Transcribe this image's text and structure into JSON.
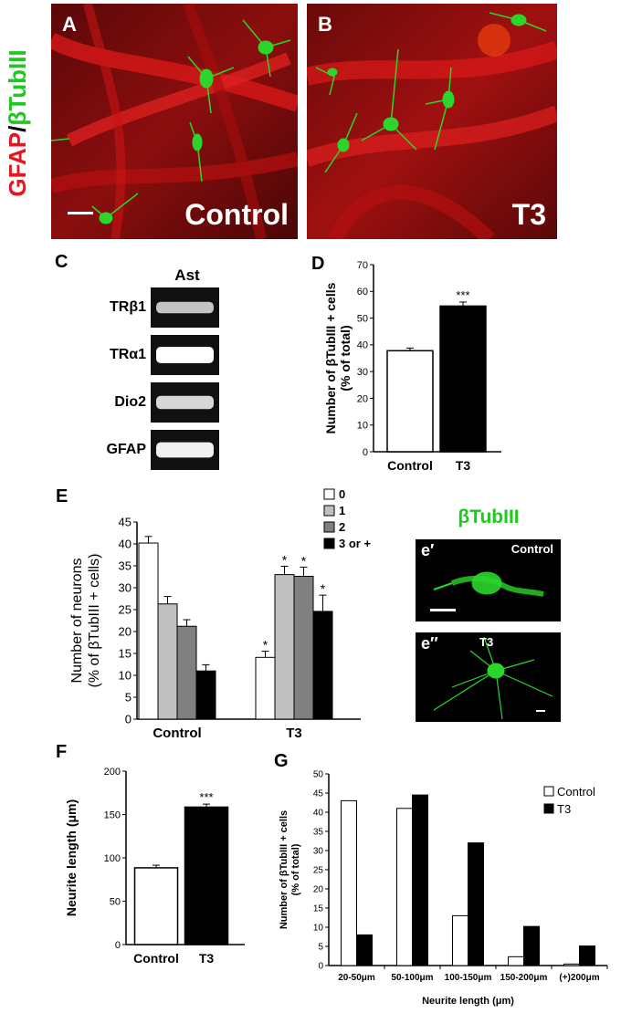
{
  "side_label": {
    "gfap": "GFAP",
    "slash": "/",
    "tub": "βTubIII"
  },
  "panels": {
    "A": {
      "letter": "A",
      "condition": "Control"
    },
    "B": {
      "letter": "B",
      "condition": "T3"
    },
    "C": {
      "letter": "C",
      "header": "Ast",
      "bands": [
        "TRβ1",
        "TRα1",
        "Dio2",
        "GFAP"
      ],
      "band_intensity": [
        0.55,
        1.0,
        0.7,
        0.9
      ]
    },
    "e_insets": {
      "title": "βTubIII",
      "top": {
        "letter": "e′",
        "condition": "Control"
      },
      "bottom": {
        "letter": "e′′",
        "condition": "T3"
      }
    }
  },
  "colors": {
    "gfap": "#e8141e",
    "tub": "#1fc81f",
    "bar_control": "#ffffff",
    "bar_t3": "#000000",
    "bar_0": "#ffffff",
    "bar_1": "#c0c0c0",
    "bar_2": "#808080",
    "bar_3": "#000000"
  },
  "chart_data": [
    {
      "id": "D",
      "letter": "D",
      "type": "bar",
      "categories": [
        "Control",
        "T3"
      ],
      "values": [
        37.8,
        54.5
      ],
      "errors": [
        1.0,
        1.5
      ],
      "significance": [
        "",
        "***"
      ],
      "ylabel": [
        "Number of βTubIII + cells",
        "(% of total)"
      ],
      "ylim": [
        0,
        70
      ],
      "yticks": [
        0,
        10,
        20,
        30,
        40,
        50,
        60,
        70
      ]
    },
    {
      "id": "E",
      "letter": "E",
      "type": "bar",
      "categories": [
        "Control",
        "T3"
      ],
      "series": [
        {
          "name": "0",
          "values": [
            40.2,
            14.1
          ],
          "errors": [
            1.5,
            1.4
          ],
          "significance": [
            "",
            "*"
          ]
        },
        {
          "name": "1",
          "values": [
            26.3,
            33.0
          ],
          "errors": [
            1.7,
            1.9
          ],
          "significance": [
            "",
            "*"
          ]
        },
        {
          "name": "2",
          "values": [
            21.2,
            32.6
          ],
          "errors": [
            1.5,
            2.1
          ],
          "significance": [
            "",
            "*"
          ]
        },
        {
          "name": "3 or +",
          "values": [
            11.0,
            24.6
          ],
          "errors": [
            1.4,
            3.7
          ],
          "significance": [
            "",
            "*"
          ]
        }
      ],
      "ylabel": [
        "Number of neurons",
        "(% of βTubIII + cells)"
      ],
      "ylim": [
        0,
        45
      ],
      "yticks": [
        0,
        5,
        10,
        15,
        20,
        25,
        30,
        35,
        40,
        45
      ],
      "legend_position": "top-right"
    },
    {
      "id": "F",
      "letter": "F",
      "type": "bar",
      "categories": [
        "Control",
        "T3"
      ],
      "values": [
        88.5,
        158.5
      ],
      "errors": [
        3.0,
        3.5
      ],
      "significance": [
        "",
        "***"
      ],
      "ylabel": [
        "Neurite length (μm)"
      ],
      "ylim": [
        0,
        200
      ],
      "yticks": [
        0,
        50,
        100,
        150,
        200
      ]
    },
    {
      "id": "G",
      "letter": "G",
      "type": "bar",
      "categories": [
        "20-50μm",
        "50-100μm",
        "100-150μm",
        "150-200μm",
        "(+)200μm"
      ],
      "series": [
        {
          "name": "Control",
          "values": [
            43,
            41,
            13,
            2.3,
            0.4
          ]
        },
        {
          "name": "T3",
          "values": [
            8,
            44.5,
            32,
            10.2,
            5.1
          ]
        }
      ],
      "xlabel": "Neurite length (μm)",
      "ylabel": [
        "Number of βTubIII + cells",
        "(% of total)"
      ],
      "ylim": [
        0,
        50
      ],
      "yticks": [
        0,
        5,
        10,
        15,
        20,
        25,
        30,
        35,
        40,
        45,
        50
      ],
      "legend_position": "top-right"
    }
  ]
}
